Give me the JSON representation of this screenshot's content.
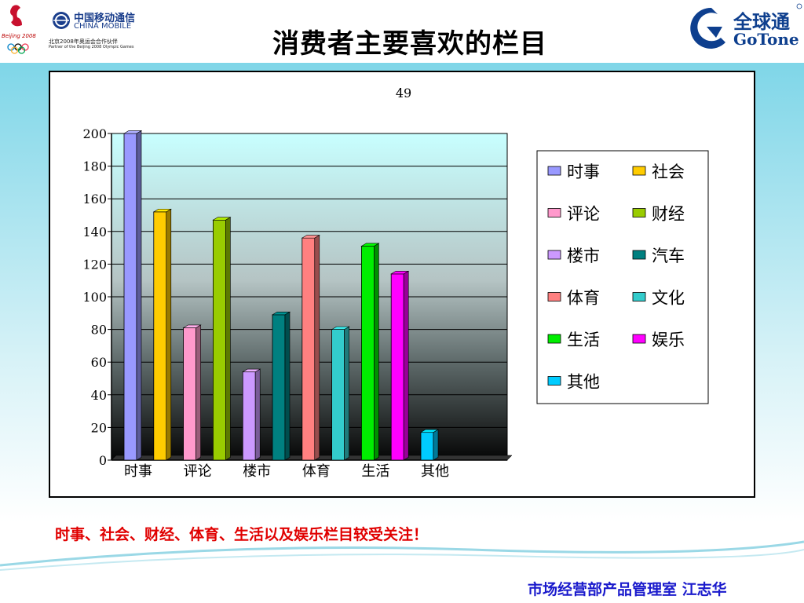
{
  "header": {
    "title": "消费者主要喜欢的栏目",
    "left_logo": {
      "brand_cn": "中国移动通信",
      "brand_en": "CHINA MOBILE",
      "partner_cn": "北京2008年奥运会合作伙伴",
      "partner_en": "Partner of the Beijing 2008 Olympic Games",
      "olympic_text": "Beijing 2008"
    },
    "right_logo": {
      "brand_cn": "全球通",
      "brand_en": "GoTone"
    }
  },
  "note": "时事、社会、财经、体育、生活以及娱乐栏目较受关注！",
  "footer": "市场经营部产品管理室  江志华",
  "colors": {
    "note": "#e00000",
    "footer": "#1a1acc",
    "title": "#000000"
  },
  "chart_data": {
    "type": "bar",
    "title": "49",
    "categories": [
      "时事",
      "社会",
      "评论",
      "财经",
      "楼市",
      "汽车",
      "体育",
      "文化",
      "生活",
      "娱乐",
      "其他"
    ],
    "x_tick_labels": [
      "时事",
      "评论",
      "楼市",
      "体育",
      "生活",
      "其他"
    ],
    "values": [
      200,
      152,
      81,
      147,
      54,
      89,
      136,
      80,
      131,
      114,
      17
    ],
    "colors": [
      "#9999ff",
      "#ffcc00",
      "#ff99cc",
      "#99cc00",
      "#cc99ff",
      "#008080",
      "#ff8080",
      "#33cccc",
      "#00ee00",
      "#ff00ff",
      "#00ccff"
    ],
    "ylim": [
      0,
      200
    ],
    "yticks": [
      0,
      20,
      40,
      60,
      80,
      100,
      120,
      140,
      160,
      180,
      200
    ],
    "grid": true,
    "legend_position": "right"
  }
}
